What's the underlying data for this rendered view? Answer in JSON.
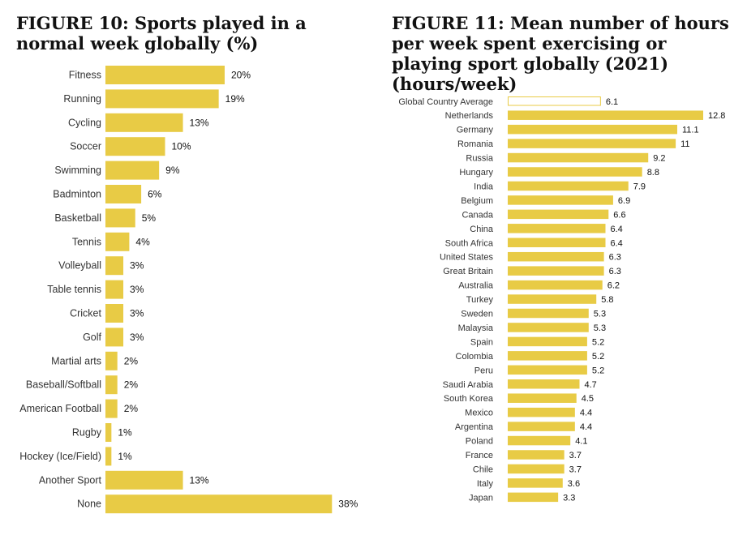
{
  "colors": {
    "bar": "#E8CB45",
    "outline_bar_fill": "#ffffff"
  },
  "chart_data": [
    {
      "type": "bar",
      "orientation": "horizontal",
      "title": "FIGURE 10: Sports played in a normal week globally (%)",
      "categories": [
        "Fitness",
        "Running",
        "Cycling",
        "Soccer",
        "Swimming",
        "Badminton",
        "Basketball",
        "Tennis",
        "Volleyball",
        "Table tennis",
        "Cricket",
        "Golf",
        "Martial arts",
        "Baseball/Softball",
        "American Football",
        "Rugby",
        "Hockey (Ice/Field)",
        "Another Sport",
        "None"
      ],
      "values": [
        20,
        19,
        13,
        10,
        9,
        6,
        5,
        4,
        3,
        3,
        3,
        3,
        2,
        2,
        2,
        1,
        1,
        13,
        38
      ],
      "value_labels": [
        "20%",
        "19%",
        "13%",
        "10%",
        "9%",
        "6%",
        "5%",
        "4%",
        "3%",
        "3%",
        "3%",
        "3%",
        "2%",
        "2%",
        "2%",
        "1%",
        "1%",
        "13%",
        "38%"
      ],
      "unit": "%",
      "grid": false,
      "legend": "none"
    },
    {
      "type": "bar",
      "orientation": "horizontal",
      "title": "FIGURE 11: Mean number of hours per week spent exercising or playing sport globally (2021) (hours/week)",
      "categories": [
        "Global Country Average",
        "Netherlands",
        "Germany",
        "Romania",
        "Russia",
        "Hungary",
        "India",
        "Belgium",
        "Canada",
        "China",
        "South Africa",
        "United States",
        "Great Britain",
        "Australia",
        "Turkey",
        "Sweden",
        "Malaysia",
        "Spain",
        "Colombia",
        "Peru",
        "Saudi Arabia",
        "South Korea",
        "Mexico",
        "Argentina",
        "Poland",
        "France",
        "Chile",
        "Italy",
        "Japan"
      ],
      "values": [
        6.1,
        12.8,
        11.1,
        11,
        9.2,
        8.8,
        7.9,
        6.9,
        6.6,
        6.4,
        6.4,
        6.3,
        6.3,
        6.2,
        5.8,
        5.3,
        5.3,
        5.2,
        5.2,
        5.2,
        4.7,
        4.5,
        4.4,
        4.4,
        4.1,
        3.7,
        3.7,
        3.6,
        3.3
      ],
      "value_labels": [
        "6.1",
        "12.8",
        "11.1",
        "11",
        "9.2",
        "8.8",
        "7.9",
        "6.9",
        "6.6",
        "6.4",
        "6.4",
        "6.3",
        "6.3",
        "6.2",
        "5.8",
        "5.3",
        "5.3",
        "5.2",
        "5.2",
        "5.2",
        "4.7",
        "4.5",
        "4.4",
        "4.4",
        "4.1",
        "3.7",
        "3.7",
        "3.6",
        "3.3"
      ],
      "highlight": "Global Country Average",
      "unit": "hours/week",
      "grid": false,
      "legend": "none"
    }
  ]
}
